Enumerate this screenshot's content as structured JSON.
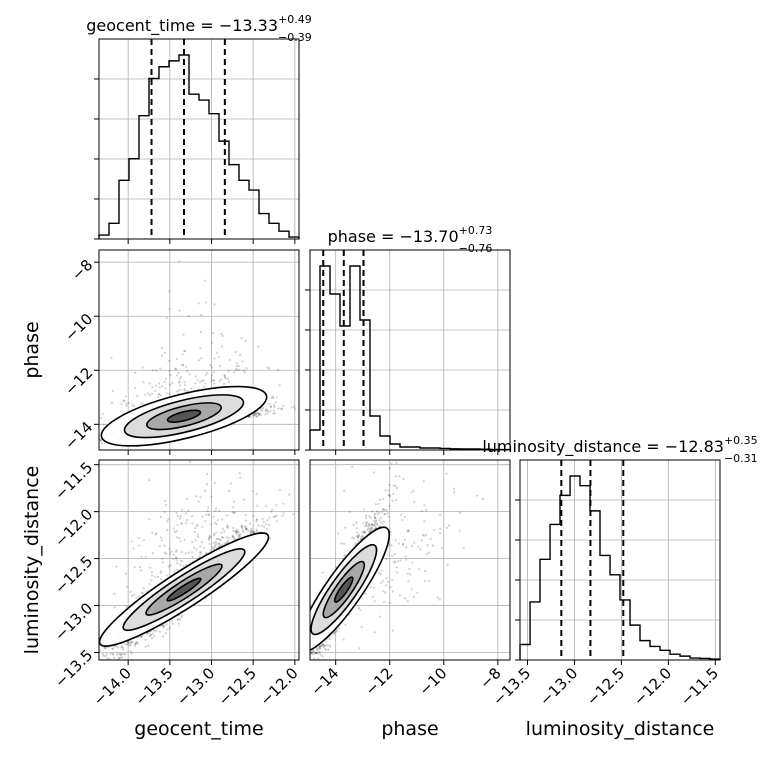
{
  "chart_data": {
    "type": "corner",
    "parameters": [
      "geocent_time",
      "phase",
      "luminosity_distance"
    ],
    "titles": [
      {
        "param": "geocent_time",
        "median": "−13.33",
        "plus": "+0.49",
        "minus": "−0.39"
      },
      {
        "param": "phase",
        "median": "−13.70",
        "plus": "+0.73",
        "minus": "−0.76"
      },
      {
        "param": "luminosity_distance",
        "median": "−12.83",
        "plus": "+0.35",
        "minus": "−0.31"
      }
    ],
    "ranges": [
      [
        -14.35,
        -11.95
      ],
      [
        -14.95,
        -7.55
      ],
      [
        -13.58,
        -11.45
      ]
    ],
    "ticks": [
      {
        "values": [
          -14.0,
          -13.5,
          -13.0,
          -12.5,
          -12.0
        ],
        "labels": [
          "−14.0",
          "−13.5",
          "−13.0",
          "−12.5",
          "−12.0"
        ]
      },
      {
        "values": [
          -14,
          -12,
          -10,
          -8
        ],
        "labels": [
          "−14",
          "−12",
          "−10",
          "−8"
        ]
      },
      {
        "values": [
          -13.5,
          -13.0,
          -12.5,
          -12.0,
          -11.5
        ],
        "labels": [
          "−13.5",
          "−13.0",
          "−12.5",
          "−12.0",
          "−11.5"
        ]
      }
    ],
    "quantiles": [
      [
        -13.72,
        -13.33,
        -12.84
      ],
      [
        -14.46,
        -13.7,
        -12.97
      ],
      [
        -13.14,
        -12.83,
        -12.48
      ]
    ],
    "histograms": [
      {
        "edges": [
          -14.35,
          -14.23,
          -14.11,
          -13.99,
          -13.87,
          -13.75,
          -13.63,
          -13.51,
          -13.39,
          -13.27,
          -13.15,
          -13.03,
          -12.91,
          -12.79,
          -12.67,
          -12.55,
          -12.43,
          -12.31,
          -12.19,
          -12.07,
          -11.95
        ],
        "counts": [
          0.02,
          0.08,
          0.3,
          0.41,
          0.63,
          0.82,
          0.88,
          0.91,
          0.94,
          0.74,
          0.71,
          0.64,
          0.5,
          0.38,
          0.3,
          0.25,
          0.13,
          0.08,
          0.04,
          0.01
        ]
      },
      {
        "edges": [
          -14.95,
          -14.58,
          -14.21,
          -13.84,
          -13.47,
          -13.1,
          -12.73,
          -12.36,
          -11.99,
          -11.62,
          -11.25,
          -10.88,
          -10.51,
          -10.14,
          -9.77,
          -9.4,
          -9.03,
          -8.66,
          -8.29,
          -7.92,
          -7.55
        ],
        "counts": [
          0.1,
          0.92,
          0.78,
          0.62,
          0.92,
          0.65,
          0.17,
          0.07,
          0.03,
          0.015,
          0.015,
          0.01,
          0.01,
          0.008,
          0.006,
          0.005,
          0.005,
          0.004,
          0.003,
          0.002
        ]
      },
      {
        "edges": [
          -13.58,
          -13.473,
          -13.367,
          -13.26,
          -13.154,
          -13.047,
          -12.941,
          -12.834,
          -12.728,
          -12.621,
          -12.515,
          -12.408,
          -12.302,
          -12.195,
          -12.089,
          -11.982,
          -11.876,
          -11.769,
          -11.663,
          -11.556,
          -11.45
        ],
        "counts": [
          0.08,
          0.3,
          0.52,
          0.7,
          0.85,
          0.95,
          0.9,
          0.77,
          0.54,
          0.44,
          0.31,
          0.18,
          0.1,
          0.07,
          0.05,
          0.03,
          0.02,
          0.01,
          0.008,
          0.005
        ]
      }
    ],
    "pairs": [
      {
        "x": "geocent_time",
        "y": "phase",
        "note": "banded correlation, dense along lower edge"
      },
      {
        "x": "geocent_time",
        "y": "luminosity_distance",
        "note": "strong positive linear correlation"
      },
      {
        "x": "phase",
        "y": "luminosity_distance",
        "note": "strong positive correlation with banding"
      }
    ],
    "grid": true
  }
}
